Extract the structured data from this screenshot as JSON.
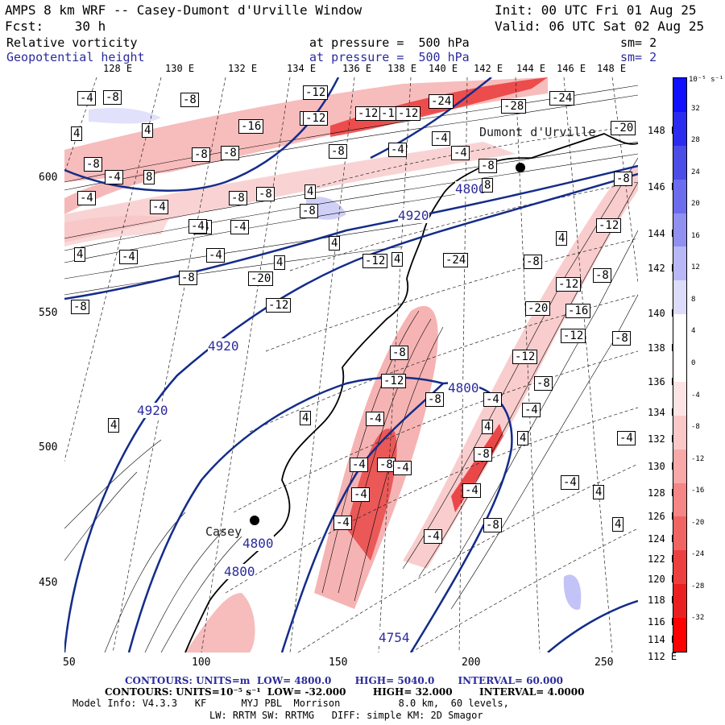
{
  "header": {
    "title": "AMPS 8 km WRF -- Casey-Dumont d'Urville Window",
    "fcst_label": "Fcst:",
    "fcst_value": "30 h",
    "init": "Init: 00 UTC Fri 01 Aug 25",
    "valid": "Valid: 06 UTC Sat 02 Aug 25",
    "field1": {
      "name": "Relative vorticity",
      "pressure_text": "at pressure =",
      "pressure": "500 hPa",
      "sm": "sm= 2"
    },
    "field2": {
      "name": "Geopotential height",
      "pressure_text": "at pressure =",
      "pressure": "500 hPa",
      "sm": "sm= 2"
    }
  },
  "axes": {
    "top_lon_labels": [
      "128 E",
      "130 E",
      "132 E",
      "134 E",
      "136 E",
      "138 E",
      "140 E",
      "142 E",
      "144 E",
      "146 E",
      "148 E"
    ],
    "right_lon_labels": [
      "148 E",
      "146 E",
      "144 E",
      "142 E",
      "140 E",
      "138 E",
      "136 E",
      "134 E",
      "132 E",
      "130 E",
      "128 E",
      "126 E",
      "124 E",
      "122 E",
      "120 E",
      "118 E",
      "116 E",
      "114 E",
      "112 E"
    ],
    "x_ticks": [
      "50",
      "100",
      "150",
      "200",
      "250"
    ],
    "y_ticks": [
      "600",
      "550",
      "500",
      "450"
    ]
  },
  "colorbar": {
    "unit_label": "10⁻⁵ s⁻¹",
    "labels": [
      "32",
      "28",
      "24",
      "20",
      "16",
      "12",
      "8",
      "4",
      "0",
      "-4",
      "-8",
      "-12",
      "-16",
      "-20",
      "-24",
      "-28",
      "-32"
    ],
    "colors": [
      "#1010ff",
      "#2c2cf0",
      "#4c4ce6",
      "#6c6cee",
      "#9090f0",
      "#b8b8f6",
      "#dcdcfa",
      "#ffffff",
      "#ffffff",
      "#fde4e4",
      "#fbc8c8",
      "#f8a8a8",
      "#f48686",
      "#f06464",
      "#ec4040",
      "#ea2020",
      "#ff0000"
    ]
  },
  "places": {
    "dumont": "Dumont d'Urville",
    "casey": "Casey"
  },
  "height_labels": [
    "4920",
    "4920",
    "4920",
    "4800",
    "4800",
    "4800",
    "4800",
    "4754"
  ],
  "vorticity_labels": [
    "-4",
    "-8",
    "-8",
    "-12",
    "-12",
    "-12",
    "-24",
    "-28",
    "-24",
    "-20",
    "4",
    "4",
    "-16",
    "-20",
    "-12",
    "-4",
    "-8",
    "-8",
    "-8",
    "-8",
    "8",
    "-8",
    "-4",
    "-4",
    "-8",
    "-4",
    "8",
    "-8",
    "-8",
    "-4",
    "-4",
    "-4",
    "4",
    "-8",
    "-4",
    "-4",
    "4",
    "4",
    "-4",
    "-4",
    "4",
    "4",
    "4",
    "-12",
    "-12",
    "-8",
    "-12",
    "-8",
    "-8",
    "-20",
    "-24",
    "-12",
    "-20",
    "-16",
    "-12",
    "-8",
    "-12",
    "-8",
    "-8",
    "-12",
    "-12",
    "-8",
    "-8",
    "-4",
    "-4",
    "-4",
    "4",
    "4",
    "4",
    "4",
    "-8",
    "-4",
    "-4",
    "-8",
    "-4",
    "-4",
    "-4",
    "-4",
    "-4",
    "-4",
    "4",
    "4",
    "-8"
  ],
  "footer": {
    "line1_a": "CONTOURS: UNITS=m  LOW= 4800.0",
    "line1_b": "HIGH= 5040.0",
    "line1_c": "INTERVAL= 60.000",
    "line2": "CONTOURS: UNITS=10⁻⁵ s⁻¹  LOW= -32.000        HIGH= 32.000        INTERVAL= 4.0000",
    "line3": "Model Info: V4.3.3   KF      MYJ PBL  Morrison          8.0 km,  60 levels,",
    "line4": "LW: RRTM SW: RRTMG   DIFF: simple KM: 2D Smagor"
  }
}
